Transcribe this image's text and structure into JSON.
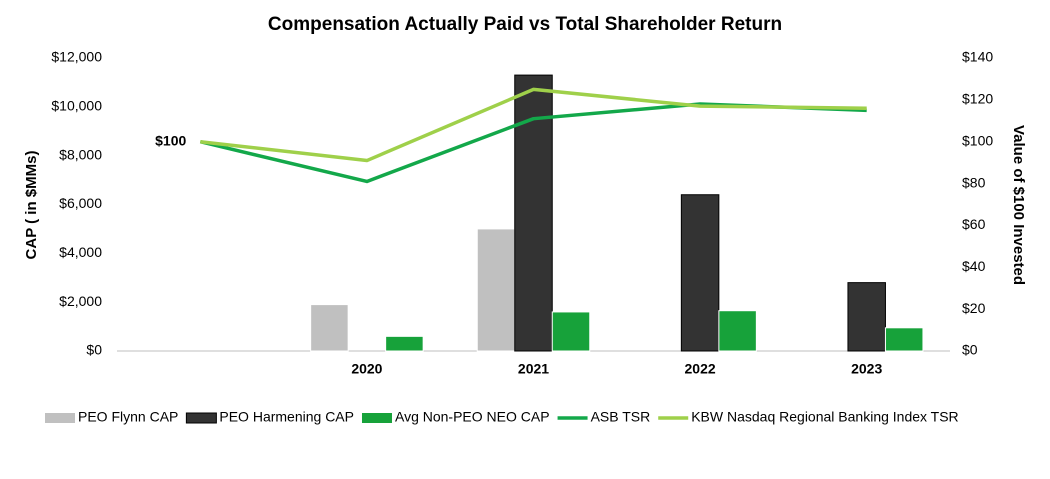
{
  "chart_data": {
    "type": "bar-line",
    "title": "Compensation Actually Paid vs Total Shareholder Return",
    "y_label": "CAP ( in $MMs)",
    "y2_label": "Value of $100 Invested",
    "categories": [
      null,
      "2020",
      "2021",
      "2022",
      "2023"
    ],
    "ylim": [
      0,
      12000
    ],
    "yticks": [
      {
        "value": 0,
        "label": "$0"
      },
      {
        "value": 2000,
        "label": "$2,000"
      },
      {
        "value": 4000,
        "label": "$4,000"
      },
      {
        "value": 6000,
        "label": "$6,000"
      },
      {
        "value": 8000,
        "label": "$8,000"
      },
      {
        "value": 10000,
        "label": "$10,000"
      },
      {
        "value": 12000,
        "label": "$12,000"
      }
    ],
    "y2lim": [
      0,
      140
    ],
    "y2ticks": [
      {
        "value": 0,
        "label": "$0"
      },
      {
        "value": 20,
        "label": "$20"
      },
      {
        "value": 40,
        "label": "$40"
      },
      {
        "value": 60,
        "label": "$60"
      },
      {
        "value": 80,
        "label": "$80"
      },
      {
        "value": 100,
        "label": "$100"
      },
      {
        "value": 120,
        "label": "$120"
      },
      {
        "value": 140,
        "label": "$140"
      }
    ],
    "series": [
      {
        "name": "PEO Flynn CAP",
        "type": "bar",
        "color": "#c0c0c0",
        "values": [
          null,
          1900,
          5000,
          null,
          null
        ]
      },
      {
        "name": "PEO Harmening CAP",
        "type": "bar",
        "color": "#333333",
        "values": [
          null,
          null,
          11300,
          6400,
          2800
        ]
      },
      {
        "name": "Avg Non-PEO NEO CAP",
        "type": "bar",
        "color": "#17a23a",
        "values": [
          null,
          600,
          1600,
          1650,
          950
        ]
      },
      {
        "name": "ASB TSR",
        "type": "line",
        "axis": "y2",
        "color": "#13a84a",
        "values": [
          100,
          81,
          111,
          118,
          115
        ],
        "value_labels": [
          "$100",
          null,
          null,
          null,
          null
        ]
      },
      {
        "name": "KBW Nasdaq Regional Banking Index TSR",
        "type": "line",
        "axis": "y2",
        "color": "#9fd04a",
        "values": [
          100,
          91,
          125,
          117,
          116
        ]
      }
    ]
  }
}
